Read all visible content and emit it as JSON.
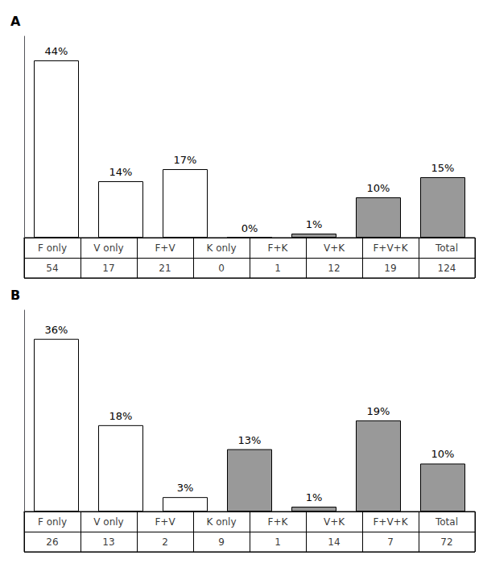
{
  "chart_data": [
    {
      "type": "bar",
      "title": "A",
      "categories": [
        "F only",
        "V only",
        "F+V",
        "K only",
        "F+K",
        "V+K",
        "F+V+K"
      ],
      "values": [
        44,
        14,
        17,
        0,
        1,
        10,
        15
      ],
      "value_labels": [
        "44%",
        "14%",
        "17%",
        "0%",
        "1%",
        "10%",
        "15%"
      ],
      "colors": [
        "#ffffff",
        "#ffffff",
        "#ffffff",
        "#ffffff",
        "#999999",
        "#999999",
        "#999999"
      ],
      "ylim": [
        0,
        50
      ],
      "data_labels": true,
      "tick_labels": false,
      "grid": false,
      "table": {
        "categories": [
          "F only",
          "V only",
          "F+V",
          "K only",
          "F+K",
          "V+K",
          "F+V+K",
          "Total"
        ],
        "counts": [
          54,
          17,
          21,
          0,
          1,
          12,
          19,
          124
        ]
      }
    },
    {
      "type": "bar",
      "title": "B",
      "categories": [
        "F only",
        "V only",
        "F+V",
        "K only",
        "F+K",
        "V+K",
        "F+V+K"
      ],
      "values": [
        36,
        18,
        3,
        13,
        1,
        19,
        10
      ],
      "value_labels": [
        "36%",
        "18%",
        "3%",
        "13%",
        "1%",
        "19%",
        "10%"
      ],
      "colors": [
        "#ffffff",
        "#ffffff",
        "#ffffff",
        "#999999",
        "#999999",
        "#999999",
        "#999999"
      ],
      "ylim": [
        0,
        42
      ],
      "data_labels": true,
      "tick_labels": false,
      "grid": false,
      "table": {
        "categories": [
          "F only",
          "V only",
          "F+V",
          "K only",
          "F+K",
          "V+K",
          "F+V+K",
          "Total"
        ],
        "counts": [
          26,
          13,
          2,
          9,
          1,
          14,
          7,
          72
        ]
      }
    }
  ]
}
